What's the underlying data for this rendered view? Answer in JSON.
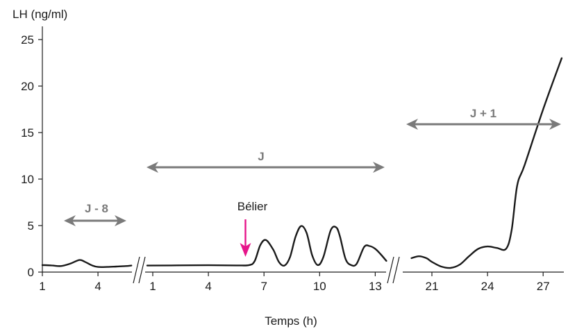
{
  "chart_data": {
    "type": "line",
    "ylabel": "LH (ng/ml)",
    "xlabel": "Temps (h)",
    "ylim": [
      0,
      27
    ],
    "yticks": [
      0,
      5,
      10,
      15,
      20,
      25
    ],
    "grid": false,
    "segments": [
      {
        "period": "J - 8",
        "xticks": [
          "1",
          "4"
        ],
        "x": [
          1,
          1.5,
          2,
          2.5,
          3,
          3.3,
          3.7,
          4,
          4.5,
          5,
          5.5,
          5.8
        ],
        "y": [
          0.75,
          0.72,
          0.65,
          0.9,
          1.3,
          1.1,
          0.7,
          0.55,
          0.55,
          0.6,
          0.65,
          0.7
        ]
      },
      {
        "period": "J",
        "xticks": [
          "1",
          "4",
          "7",
          "10",
          "13"
        ],
        "x": [
          0.7,
          2,
          4,
          5.5,
          6.2,
          6.5,
          6.8,
          7.1,
          7.5,
          7.8,
          8.1,
          8.4,
          8.7,
          9,
          9.3,
          9.6,
          9.9,
          10.2,
          10.6,
          10.9,
          11.1,
          11.4,
          11.7,
          12,
          12.4,
          12.7,
          13,
          13.3,
          13.6
        ],
        "y": [
          0.7,
          0.72,
          0.74,
          0.72,
          0.75,
          1.2,
          2.9,
          3.45,
          2.4,
          1.1,
          0.7,
          1.6,
          3.8,
          4.95,
          4.2,
          1.8,
          0.75,
          1.6,
          4.5,
          4.8,
          3.8,
          1.4,
          0.75,
          0.9,
          2.7,
          2.8,
          2.5,
          1.9,
          1.2
        ]
      },
      {
        "period": "J + 1",
        "xticks": [
          "21",
          "24",
          "27"
        ],
        "x": [
          19.9,
          20.3,
          20.7,
          21,
          21.5,
          22,
          22.5,
          23,
          23.5,
          24,
          24.5,
          25,
          25.3,
          25.6,
          26,
          27,
          28
        ],
        "y": [
          1.5,
          1.7,
          1.5,
          1.1,
          0.6,
          0.45,
          0.8,
          1.7,
          2.5,
          2.75,
          2.6,
          2.5,
          4.5,
          9.3,
          11.5,
          17.5,
          23
        ]
      }
    ],
    "periods": [
      {
        "label": "J - 8"
      },
      {
        "label": "J"
      },
      {
        "label": "J + 1"
      }
    ],
    "annotation": {
      "label": "Bélier",
      "x": 6,
      "segment": "J",
      "color": "#e6158a"
    },
    "colors": {
      "line": "#1a1a1a",
      "period_arrow": "#7a7a7a",
      "event_arrow": "#e6158a"
    }
  }
}
